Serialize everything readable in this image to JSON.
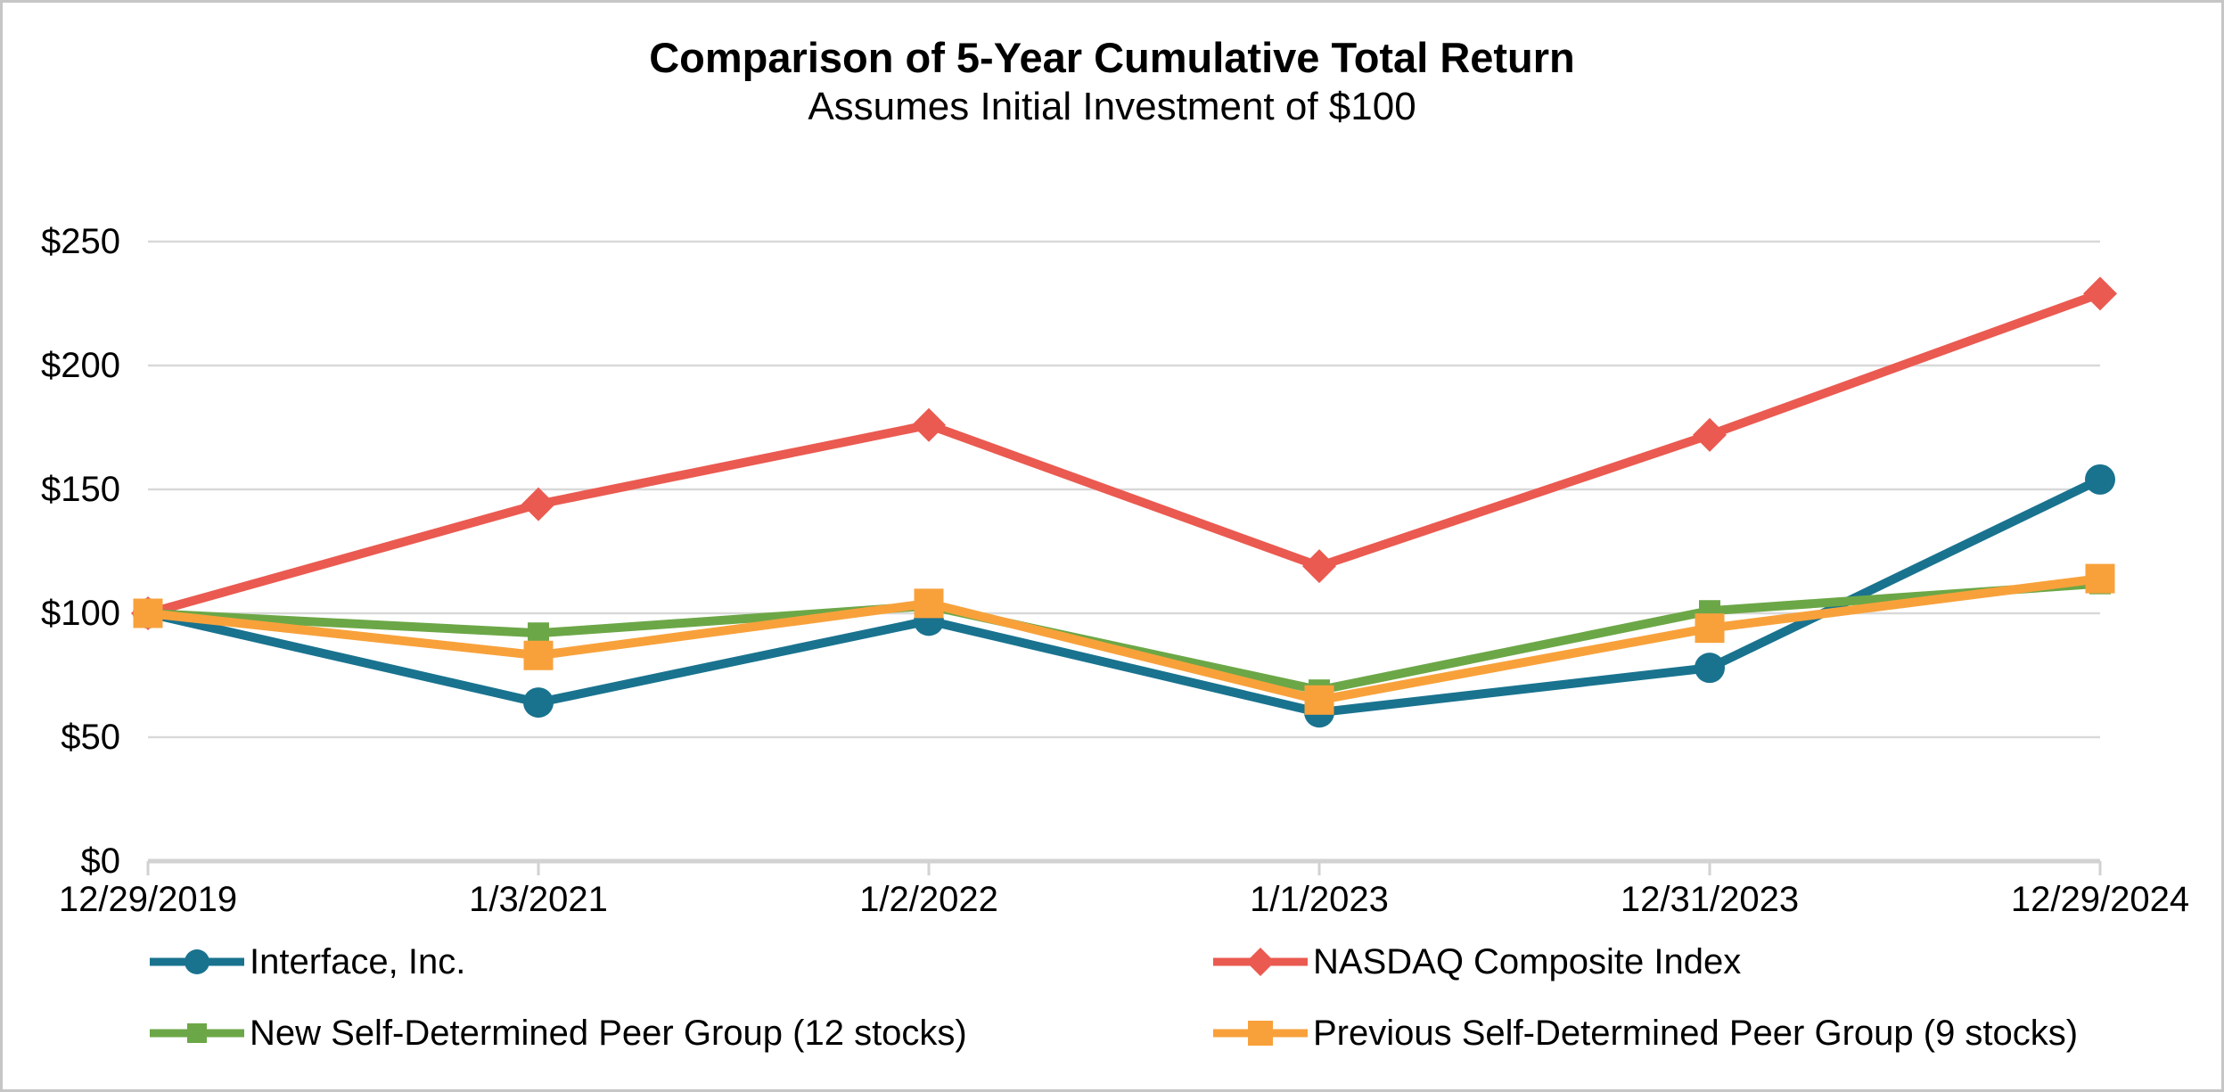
{
  "title": "Comparison of 5-Year Cumulative Total Return",
  "subtitle": "Assumes Initial Investment of $100",
  "colors": {
    "interface": "#19738F",
    "nasdaq": "#EA5A50",
    "new_peer_group": "#6CA747",
    "previous_peer_group": "#F8A13B",
    "gridline": "#D9D9D9",
    "axis_line": "#D2D2D2",
    "text": "#000000",
    "page_border": "#C6C6C6"
  },
  "chart_data": {
    "type": "line",
    "categories": [
      "12/29/2019",
      "1/3/2021",
      "1/2/2022",
      "1/1/2023",
      "12/31/2023",
      "12/29/2024"
    ],
    "series": [
      {
        "name": "Interface, Inc.",
        "marker": "circle",
        "color_key": "interface",
        "values": [
          100,
          64,
          97,
          60,
          78,
          154
        ]
      },
      {
        "name": "NASDAQ Composite Index",
        "marker": "diamond",
        "color_key": "nasdaq",
        "values": [
          100,
          144,
          176,
          119,
          172,
          229
        ]
      },
      {
        "name": "New Self-Determined Peer Group (12 stocks)",
        "marker": "square-small",
        "color_key": "new_peer_group",
        "values": [
          100,
          92,
          103,
          69,
          101,
          112
        ]
      },
      {
        "name": "Previous Self-Determined Peer Group (9 stocks)",
        "marker": "square",
        "color_key": "previous_peer_group",
        "values": [
          100,
          83,
          104,
          65,
          94,
          114
        ]
      }
    ],
    "y_axis": {
      "tick_labels": [
        "$0",
        "$50",
        "$100",
        "$150",
        "$200",
        "$250"
      ],
      "tick_values": [
        0,
        50,
        100,
        150,
        200,
        250
      ],
      "ylim": [
        0,
        250
      ],
      "prefix": "$"
    },
    "xlabel": "",
    "ylabel": "",
    "grid": true,
    "legend_position": "bottom-two-columns"
  }
}
